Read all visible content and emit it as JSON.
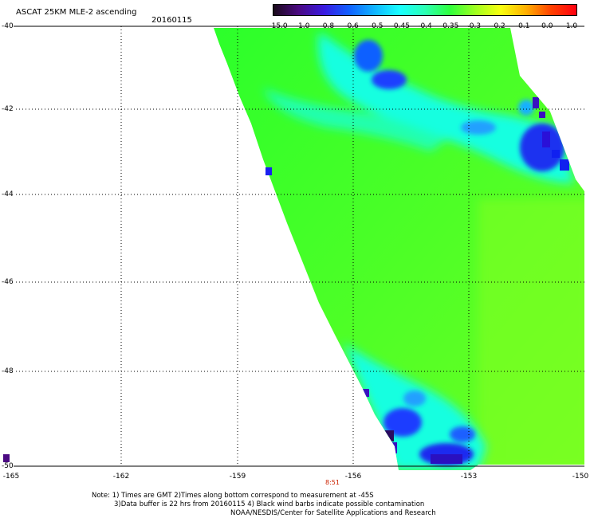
{
  "header": {
    "title": "ASCAT 25KM MLE-2 ascending",
    "date": "20160115"
  },
  "colorbar": {
    "labels": [
      "-15.0",
      "-1.0",
      "-0.8",
      "-0.6",
      "-0.5",
      "-0.45",
      "-0.4",
      "-0.35",
      "-0.3",
      "-0.2",
      "-0.1",
      "0.0",
      "1.0"
    ],
    "colors": [
      "#1a0a1a",
      "#4b0a82",
      "#3a1ae0",
      "#1060ff",
      "#10b4ff",
      "#19ffff",
      "#2cffb4",
      "#30ff3c",
      "#a0ff20",
      "#f8ff10",
      "#ffb000",
      "#ff4000",
      "#ff0010"
    ]
  },
  "axes": {
    "lat_labels": [
      "-40",
      "-42",
      "-44",
      "-46",
      "-48",
      "-50"
    ],
    "lon_labels": [
      "-165",
      "-162",
      "-159",
      "-156",
      "-153",
      "-150"
    ],
    "time_label": "8:51"
  },
  "notes": {
    "line1": "Note: 1) Times are GMT 2)Times along bottom correspond to measurement at -45S",
    "line2": "3)Data buffer is 22 hrs from 20160115 4) Black wind barbs indicate possible contamination",
    "line3": "NOAA/NESDIS/Center for Satellite Applications and Research"
  }
}
